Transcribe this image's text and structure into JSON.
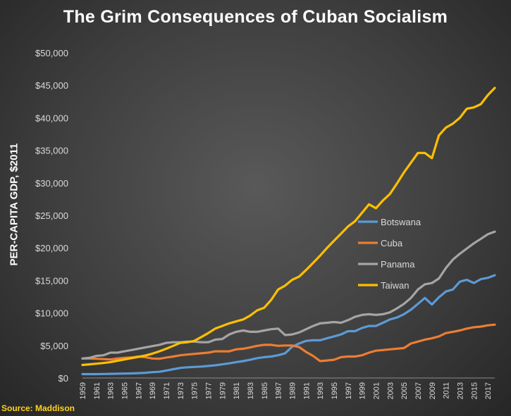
{
  "chart_data": {
    "type": "line",
    "title": "The Grim Consequences of Cuban Socialism",
    "ylabel": "PER-CAPITA GDP, $2011",
    "xlabel": "",
    "source": "Source: Maddison",
    "ylim": [
      0,
      50000
    ],
    "y_ticks": [
      0,
      5000,
      10000,
      15000,
      20000,
      25000,
      30000,
      35000,
      40000,
      45000,
      50000
    ],
    "y_tick_labels": [
      "$0",
      "$5,000",
      "$10,000",
      "$15,000",
      "$20,000",
      "$25,000",
      "$30,000",
      "$35,000",
      "$40,000",
      "$45,000",
      "$50,000"
    ],
    "x_tick_labels": [
      "1959",
      "1961",
      "1963",
      "1965",
      "1967",
      "1969",
      "1971",
      "1973",
      "1975",
      "1977",
      "1979",
      "1981",
      "1983",
      "1985",
      "1987",
      "1989",
      "1991",
      "1993",
      "1995",
      "1997",
      "1999",
      "2001",
      "2003",
      "2005",
      "2007",
      "2009",
      "2011",
      "2013",
      "2015",
      "2017"
    ],
    "x": [
      1959,
      1960,
      1961,
      1962,
      1963,
      1964,
      1965,
      1966,
      1967,
      1968,
      1969,
      1970,
      1971,
      1972,
      1973,
      1974,
      1975,
      1976,
      1977,
      1978,
      1979,
      1980,
      1981,
      1982,
      1983,
      1984,
      1985,
      1986,
      1987,
      1988,
      1989,
      1990,
      1991,
      1992,
      1993,
      1994,
      1995,
      1996,
      1997,
      1998,
      1999,
      2000,
      2001,
      2002,
      2003,
      2004,
      2005,
      2006,
      2007,
      2008,
      2009,
      2010,
      2011,
      2012,
      2013,
      2014,
      2015,
      2016,
      2017,
      2018
    ],
    "grid": false,
    "legend_position": "right-middle",
    "series": [
      {
        "name": "Botswana",
        "color": "#5b9bd5",
        "values": [
          600,
          600,
          600,
          620,
          640,
          660,
          680,
          700,
          750,
          800,
          900,
          950,
          1150,
          1350,
          1550,
          1650,
          1700,
          1750,
          1850,
          1950,
          2100,
          2250,
          2450,
          2600,
          2800,
          3050,
          3200,
          3300,
          3500,
          3800,
          4800,
          5300,
          5700,
          5800,
          5800,
          6100,
          6400,
          6700,
          7200,
          7200,
          7700,
          8000,
          8000,
          8500,
          9000,
          9300,
          9800,
          10500,
          11400,
          12300,
          11300,
          12400,
          13300,
          13600,
          14800,
          15100,
          14600,
          15200,
          15400,
          15800
        ]
      },
      {
        "name": "Cuba",
        "color": "#ed7d31",
        "values": [
          3000,
          3000,
          2950,
          2900,
          2850,
          3000,
          3100,
          3150,
          3300,
          3200,
          3000,
          2950,
          3150,
          3300,
          3500,
          3600,
          3700,
          3800,
          3900,
          4100,
          4100,
          4100,
          4400,
          4500,
          4700,
          4950,
          5100,
          5100,
          4950,
          5000,
          5000,
          4750,
          4000,
          3400,
          2600,
          2700,
          2800,
          3200,
          3300,
          3300,
          3500,
          3900,
          4200,
          4300,
          4400,
          4500,
          4600,
          5300,
          5600,
          5900,
          6100,
          6400,
          6900,
          7100,
          7300,
          7600,
          7800,
          7900,
          8100,
          8200
        ]
      },
      {
        "name": "Panama",
        "color": "#a5a5a5",
        "values": [
          3000,
          3100,
          3400,
          3500,
          3900,
          3900,
          4100,
          4300,
          4500,
          4700,
          4900,
          5100,
          5400,
          5500,
          5500,
          5600,
          5600,
          5500,
          5500,
          5900,
          6000,
          6700,
          7100,
          7300,
          7100,
          7100,
          7300,
          7500,
          7600,
          6600,
          6700,
          7000,
          7500,
          8000,
          8400,
          8500,
          8600,
          8500,
          8900,
          9400,
          9700,
          9800,
          9700,
          9800,
          10100,
          10700,
          11400,
          12300,
          13600,
          14400,
          14600,
          15300,
          16900,
          18200,
          19100,
          19900,
          20700,
          21400,
          22100,
          22500
        ]
      },
      {
        "name": "Taiwan",
        "color": "#ffc000",
        "values": [
          2000,
          2100,
          2200,
          2300,
          2450,
          2650,
          2850,
          3050,
          3250,
          3450,
          3750,
          4100,
          4500,
          4950,
          5400,
          5500,
          5700,
          6300,
          6900,
          7600,
          8000,
          8400,
          8700,
          9000,
          9600,
          10400,
          10800,
          12000,
          13600,
          14200,
          15100,
          15600,
          16600,
          17700,
          18800,
          20000,
          21100,
          22200,
          23300,
          24100,
          25400,
          26700,
          26100,
          27300,
          28300,
          29900,
          31600,
          33100,
          34600,
          34600,
          33800,
          37300,
          38500,
          39100,
          40000,
          41400,
          41600,
          42100,
          43500,
          44600
        ]
      }
    ]
  }
}
